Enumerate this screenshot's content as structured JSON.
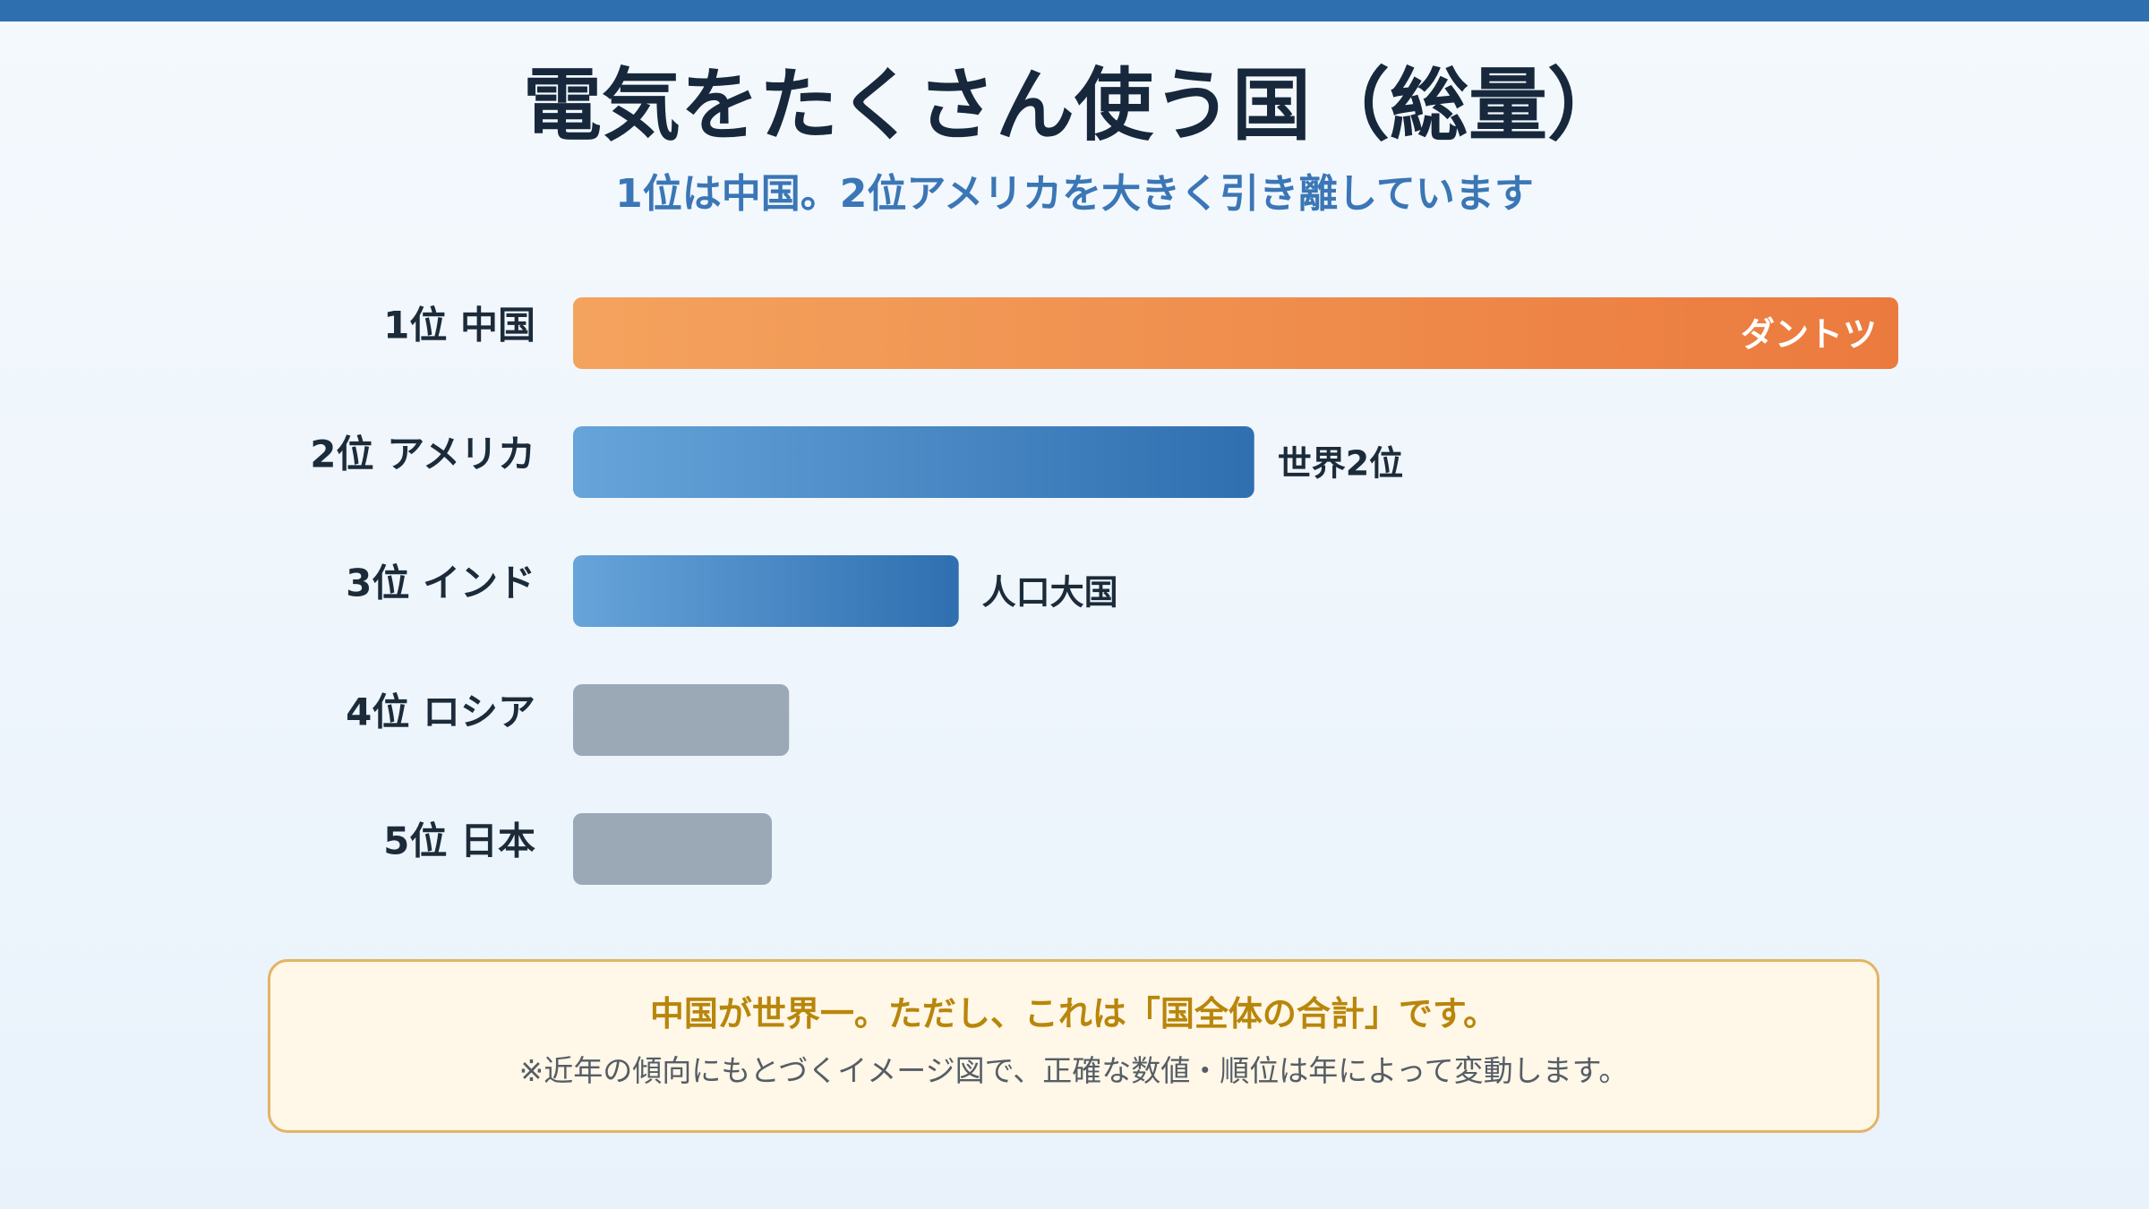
{
  "title": "電気をたくさん使う国（総量）",
  "subtitle": "1位は中国。2位アメリカを大きく引き離しています",
  "chart_data": {
    "type": "bar",
    "orientation": "horizontal",
    "categories": [
      "1位 中国",
      "2位 アメリカ",
      "3位 インド",
      "4位 ロシア",
      "5位 日本"
    ],
    "values": [
      100,
      51.4,
      29.1,
      16.3,
      15
    ],
    "annotations": [
      "ダントツ",
      "世界2位",
      "人口大国",
      "",
      ""
    ],
    "colors": [
      "#f0843c",
      "#3b78ba",
      "#3b78ba",
      "#9aa8b6",
      "#9aa8b6"
    ],
    "xlim": [
      0,
      100
    ],
    "grid": false
  },
  "note": {
    "headline": "中国が世界一。ただし、これは「国全体の合計」です。",
    "caption": "※近年の傾向にもとづくイメージ図で、正確な数値・順位は年によって変動します。"
  }
}
